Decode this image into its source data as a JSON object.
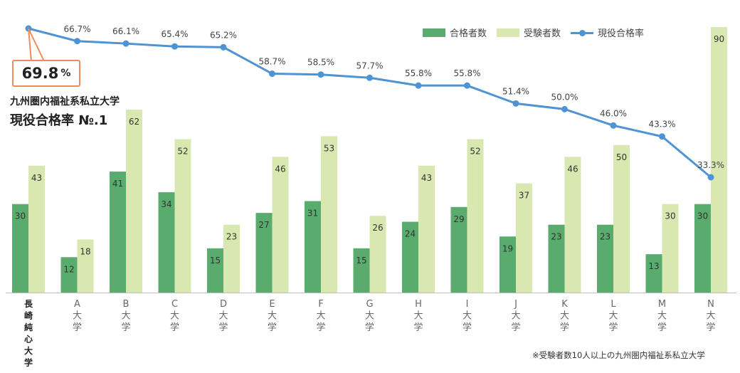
{
  "callout": {
    "value": "69.8",
    "unit": "%"
  },
  "subtitle": "九州圏内福祉系私立大学",
  "title": "現役合格率 №.1",
  "footnote": "※受験者数10人以上の九州圏内福祉系私立大学",
  "chart_data": {
    "type": "bar",
    "categories": [
      "長崎純心大学",
      "A大学",
      "B大学",
      "C大学",
      "D大学",
      "E大学",
      "F大学",
      "G大学",
      "H大学",
      "I大学",
      "J大学",
      "K大学",
      "L大学",
      "M大学",
      "N大学"
    ],
    "series": [
      {
        "name": "合格者数",
        "type": "bar",
        "color": "#5aab6e",
        "values": [
          30,
          12,
          41,
          34,
          15,
          27,
          31,
          15,
          24,
          29,
          19,
          23,
          23,
          13,
          30
        ]
      },
      {
        "name": "受験者数",
        "type": "bar",
        "color": "#d8e8b0",
        "values": [
          43,
          18,
          62,
          52,
          23,
          46,
          53,
          26,
          43,
          52,
          37,
          46,
          50,
          30,
          90
        ]
      },
      {
        "name": "現役合格率",
        "type": "line",
        "color": "#4e94d4",
        "values": [
          69.8,
          66.7,
          66.1,
          65.4,
          65.2,
          58.7,
          58.5,
          57.7,
          55.8,
          55.8,
          51.4,
          50.0,
          46.0,
          43.3,
          33.3
        ],
        "labels": [
          "",
          "66.7%",
          "66.1%",
          "65.4%",
          "65.2%",
          "58.7%",
          "58.5%",
          "57.7%",
          "55.8%",
          "55.8%",
          "51.4%",
          "50.0%",
          "46.0%",
          "43.3%",
          "33.3%"
        ]
      }
    ],
    "bar_ylim": [
      0,
      90
    ],
    "line_ylim": [
      33.3,
      69.8
    ],
    "grid": false,
    "legend": "top-right",
    "title": "現役合格率 №.1"
  }
}
